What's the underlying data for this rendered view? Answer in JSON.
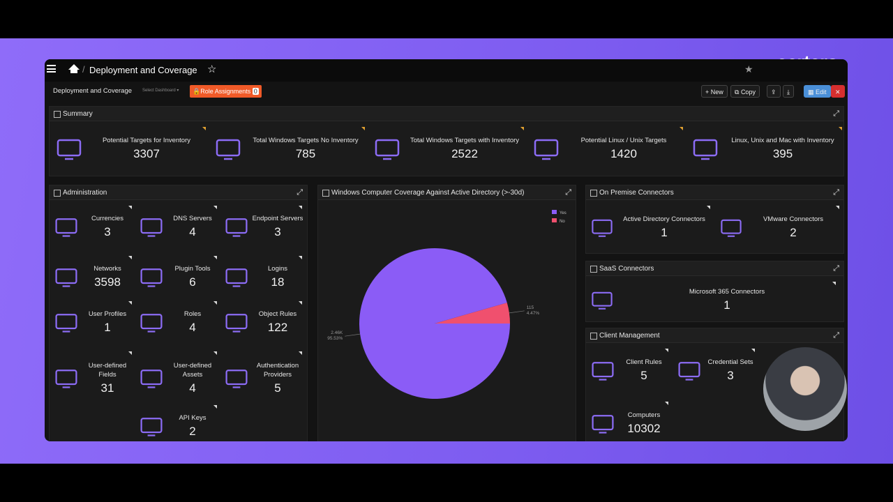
{
  "header": {
    "title": "Deployment and Coverage",
    "brand": "certero."
  },
  "toolbar": {
    "dashboard": "Deployment and Coverage",
    "select": "Select Dashboard",
    "role_assignments": "Role Assignments",
    "role_count": 0,
    "new": "New",
    "copy": "Copy",
    "edit": "Edit"
  },
  "summary": {
    "title": "Summary",
    "items": [
      {
        "label": "Potential Targets for Inventory",
        "value": 3307
      },
      {
        "label": "Total Windows Targets No Inventory",
        "value": 785
      },
      {
        "label": "Total Windows Targets with Inventory",
        "value": 2522
      },
      {
        "label": "Potential Linux / Unix Targets",
        "value": 1420
      },
      {
        "label": "Linux, Unix and Mac with Inventory",
        "value": 395
      }
    ]
  },
  "administration": {
    "title": "Administration",
    "items": [
      {
        "label": "Currencies",
        "value": 3
      },
      {
        "label": "DNS Servers",
        "value": 4
      },
      {
        "label": "Endpoint Servers",
        "value": 3
      },
      {
        "label": "Networks",
        "value": 3598
      },
      {
        "label": "Plugin Tools",
        "value": 6
      },
      {
        "label": "Logins",
        "value": 18
      },
      {
        "label": "User Profiles",
        "value": 1
      },
      {
        "label": "Roles",
        "value": 4
      },
      {
        "label": "Object Rules",
        "value": 122
      },
      {
        "label": "User-defined Fields",
        "value": 31
      },
      {
        "label": "User-defined Assets",
        "value": 4
      },
      {
        "label": "Authentication Providers",
        "value": 5
      },
      {
        "label": "API Keys",
        "value": 2
      }
    ]
  },
  "coverage": {
    "title": "Windows Computer Coverage Against Active Directory (>-30d)",
    "chart": {
      "type": "pie",
      "categories": [
        "Yes",
        "No"
      ],
      "values": [
        2460,
        115
      ],
      "value_labels": [
        "2.46K",
        "115"
      ],
      "percent_labels": [
        "95.53%",
        "4.47%"
      ],
      "colors": [
        "#8b5cf6",
        "#f0506e"
      ]
    }
  },
  "on_premise": {
    "title": "On Premise Connectors",
    "items": [
      {
        "label": "Active Directory Connectors",
        "value": 1
      },
      {
        "label": "VMware Connectors",
        "value": 2
      }
    ]
  },
  "saas": {
    "title": "SaaS Connectors",
    "items": [
      {
        "label": "Microsoft 365 Connectors",
        "value": 1
      }
    ]
  },
  "client": {
    "title": "Client Management",
    "items": [
      {
        "label": "Client Rules",
        "value": 5
      },
      {
        "label": "Credential Sets",
        "value": 3
      },
      {
        "label": "Computers",
        "value": 10302
      }
    ]
  }
}
